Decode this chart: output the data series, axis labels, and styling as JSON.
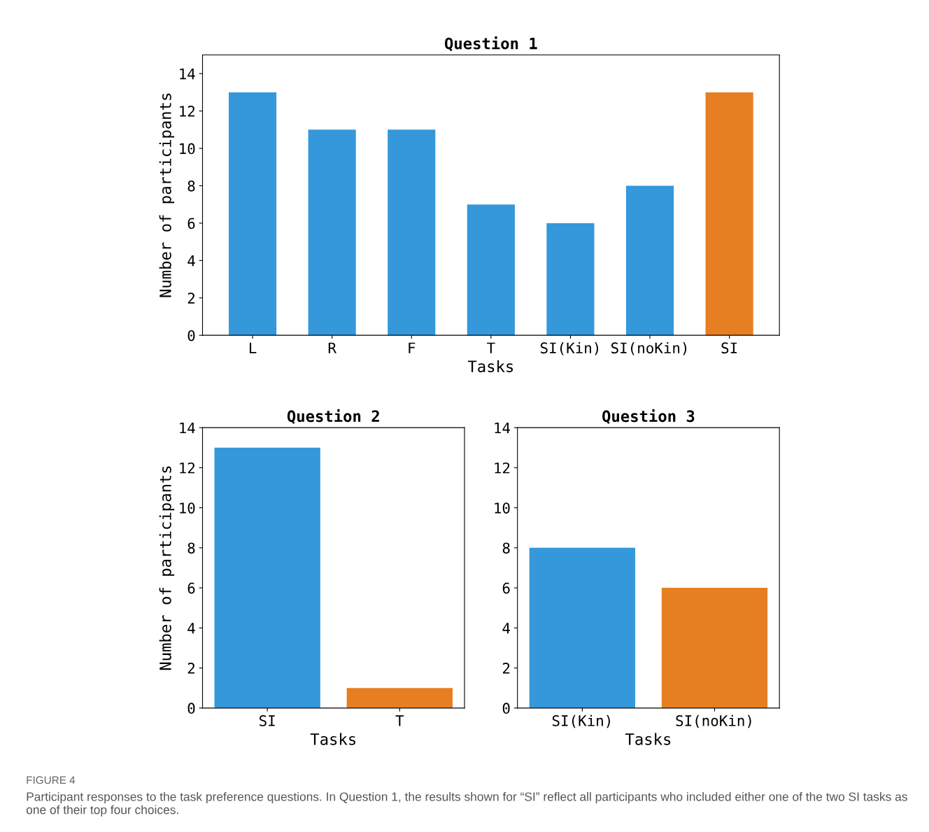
{
  "chart_data": [
    {
      "type": "bar",
      "title": "Question 1",
      "xlabel": "Tasks",
      "ylabel": "Number of participants",
      "categories": [
        "L",
        "R",
        "F",
        "T",
        "SI(Kin)",
        "SI(noKin)",
        "SI"
      ],
      "values": [
        13,
        11,
        11,
        7,
        6,
        8,
        13
      ],
      "colors": [
        "#3498db",
        "#3498db",
        "#3498db",
        "#3498db",
        "#3498db",
        "#3498db",
        "#e67e22"
      ],
      "ylim": [
        0,
        15
      ],
      "yticks": [
        0,
        2,
        4,
        6,
        8,
        10,
        12,
        14
      ],
      "grid": false
    },
    {
      "type": "bar",
      "title": "Question 2",
      "xlabel": "Tasks",
      "ylabel": "Number of participants",
      "categories": [
        "SI",
        "T"
      ],
      "values": [
        13,
        1
      ],
      "colors": [
        "#3498db",
        "#e67e22"
      ],
      "ylim": [
        0,
        14
      ],
      "yticks": [
        0,
        2,
        4,
        6,
        8,
        10,
        12,
        14
      ],
      "grid": false
    },
    {
      "type": "bar",
      "title": "Question 3",
      "xlabel": "Tasks",
      "categories": [
        "SI(Kin)",
        "SI(noKin)"
      ],
      "values": [
        8,
        6
      ],
      "colors": [
        "#3498db",
        "#e67e22"
      ],
      "ylim": [
        0,
        14
      ],
      "yticks": [
        0,
        2,
        4,
        6,
        8,
        10,
        12,
        14
      ],
      "grid": false,
      "annotations": [
        "FIGURE 4",
        "Participant responses to the task preference questions. In Question 1, the results shown for “SI” reflect all participants who included either one of the two SI tasks as one of their top four choices."
      ]
    }
  ]
}
